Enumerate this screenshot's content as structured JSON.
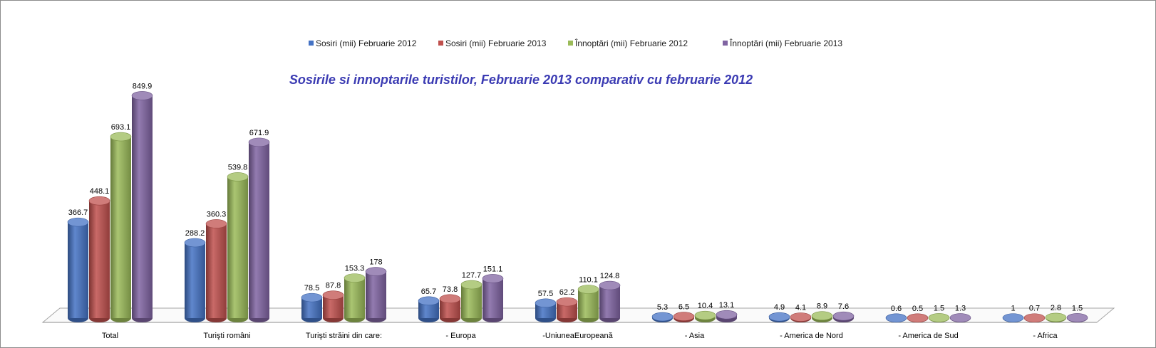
{
  "chart_data": {
    "type": "bar",
    "title": "Sosirile si innoptarile turistilor, Februarie  2013  comparativ cu februarie 2012",
    "legend_position": "top",
    "grid": false,
    "ylim": [
      0,
      900
    ],
    "categories": [
      "Total",
      "Turişti români",
      "Turişti străini din care:",
      "- Europa",
      "-UniuneaEuropeană",
      "- Asia",
      "- America de Nord",
      "- America de Sud",
      "- Africa"
    ],
    "series": [
      {
        "name": "Sosiri (mii) Februarie 2012",
        "color": "#4472c4",
        "values": [
          366.7,
          288.2,
          78.5,
          65.7,
          57.5,
          5.3,
          4.9,
          0.6,
          1
        ]
      },
      {
        "name": "Sosiri (mii) Februarie 2013",
        "color": "#c0504d",
        "values": [
          448.1,
          360.3,
          87.8,
          73.8,
          62.2,
          6.5,
          4.1,
          0.5,
          0.7
        ]
      },
      {
        "name": "Înnoptări (mii) Februarie 2012",
        "color": "#9bbb59",
        "values": [
          693.1,
          539.8,
          153.3,
          127.7,
          110.1,
          10.4,
          8.9,
          1.5,
          2.8
        ]
      },
      {
        "name": "Înnoptări (mii) Februarie 2013",
        "color": "#8064a2",
        "values": [
          849.9,
          671.9,
          178,
          151.1,
          124.8,
          13.1,
          7.6,
          1.3,
          1.5
        ]
      }
    ]
  }
}
